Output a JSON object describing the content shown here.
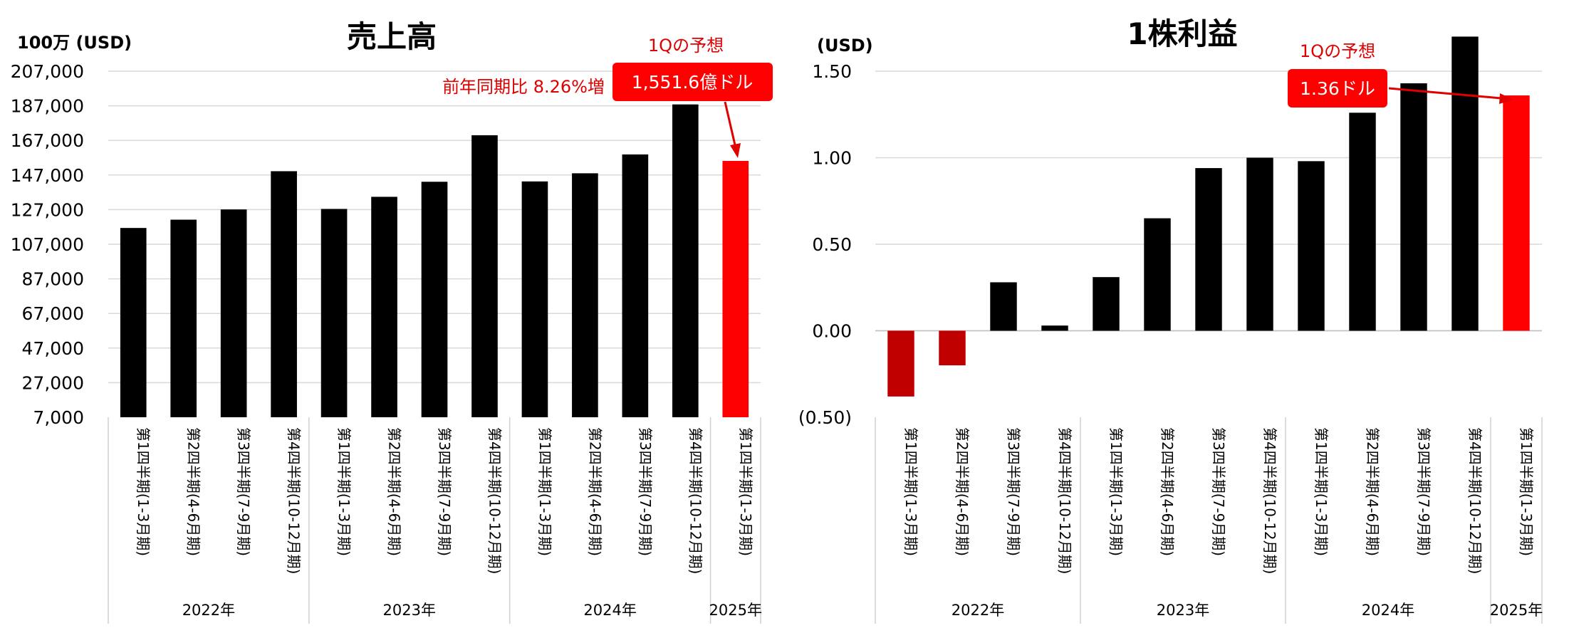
{
  "chart_data": [
    {
      "type": "bar",
      "title": "売上高",
      "ylabel": "100万 (USD)",
      "ylim": [
        7000,
        207000
      ],
      "yticks": [
        7000,
        27000,
        47000,
        67000,
        87000,
        107000,
        127000,
        147000,
        167000,
        187000,
        207000
      ],
      "ytick_labels": [
        "7,000",
        "27,000",
        "47,000",
        "67,000",
        "87,000",
        "107,000",
        "127,000",
        "147,000",
        "167,000",
        "187,000",
        "207,000"
      ],
      "grid": true,
      "categories": [
        "第1四半期(1-3月期)",
        "第2四半期(4-6月期)",
        "第3四半期(7-9月期)",
        "第4四半期(10-12月期)",
        "第1四半期(1-3月期)",
        "第2四半期(4-6月期)",
        "第3四半期(7-9月期)",
        "第4四半期(10-12月期)",
        "第1四半期(1-3月期)",
        "第2四半期(4-6月期)",
        "第3四半期(7-9月期)",
        "第4四半期(10-12月期)",
        "第1四半期(1-3月期)"
      ],
      "years": [
        {
          "label": "2022年",
          "count": 4
        },
        {
          "label": "2023年",
          "count": 4
        },
        {
          "label": "2024年",
          "count": 4
        },
        {
          "label": "2025年",
          "count": 1
        }
      ],
      "values": [
        116400,
        121200,
        127100,
        149200,
        127400,
        134400,
        143100,
        170000,
        143300,
        148000,
        158900,
        187800,
        155160
      ],
      "colors": [
        "#000000",
        "#000000",
        "#000000",
        "#000000",
        "#000000",
        "#000000",
        "#000000",
        "#000000",
        "#000000",
        "#000000",
        "#000000",
        "#000000",
        "#ff0000"
      ],
      "annotations": {
        "forecast_label": "1Qの予想",
        "forecast_value": "1,551.6億ドル",
        "yoy": "前年同期比 8.26%増"
      }
    },
    {
      "type": "bar",
      "title": "1株利益",
      "ylabel": "(USD)",
      "ylim": [
        -0.5,
        1.5
      ],
      "yticks": [
        -0.5,
        0,
        0.5,
        1,
        1.5
      ],
      "ytick_labels": [
        "(0.50)",
        "0.00",
        "0.50",
        "1.00",
        "1.50"
      ],
      "grid": true,
      "categories": [
        "第1四半期(1-3月期)",
        "第2四半期(4-6月期)",
        "第3四半期(7-9月期)",
        "第4四半期(10-12月期)",
        "第1四半期(1-3月期)",
        "第2四半期(4-6月期)",
        "第3四半期(7-9月期)",
        "第4四半期(10-12月期)",
        "第1四半期(1-3月期)",
        "第2四半期(4-6月期)",
        "第3四半期(7-9月期)",
        "第4四半期(10-12月期)",
        "第1四半期(1-3月期)"
      ],
      "years": [
        {
          "label": "2022年",
          "count": 4
        },
        {
          "label": "2023年",
          "count": 4
        },
        {
          "label": "2024年",
          "count": 4
        },
        {
          "label": "2025年",
          "count": 1
        }
      ],
      "values": [
        -0.38,
        -0.2,
        0.28,
        0.03,
        0.31,
        0.65,
        0.94,
        1.0,
        0.98,
        1.26,
        1.43,
        1.7,
        1.36
      ],
      "colors": [
        "#c00000",
        "#c00000",
        "#000000",
        "#000000",
        "#000000",
        "#000000",
        "#000000",
        "#000000",
        "#000000",
        "#000000",
        "#000000",
        "#000000",
        "#ff0000"
      ],
      "annotations": {
        "forecast_label": "1Qの予想",
        "forecast_value": "1.36ドル"
      }
    }
  ]
}
